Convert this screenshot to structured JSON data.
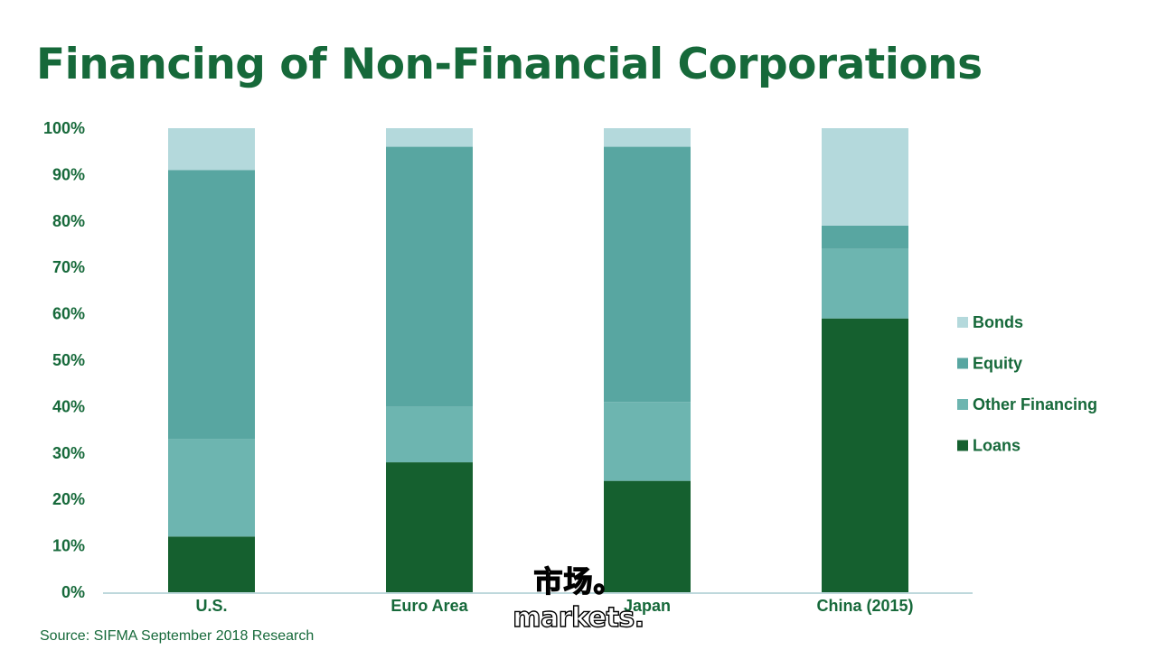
{
  "page": {
    "title": "Financing of Non-Financial Corporations",
    "source": "Source: SIFMA September 2018 Research",
    "watermark_cn": "市场。",
    "watermark_en": "markets."
  },
  "chart_data": {
    "type": "bar",
    "stacked": true,
    "title": "Financing of Non-Financial Corporations",
    "categories": [
      "U.S.",
      "Euro Area",
      "Japan",
      "China (2015)"
    ],
    "series": [
      {
        "name": "Loans",
        "color": "#15602f",
        "values": [
          12,
          28,
          24,
          59
        ]
      },
      {
        "name": "Other Financing",
        "color": "#6db5b0",
        "values": [
          21,
          12,
          17,
          15
        ]
      },
      {
        "name": "Equity",
        "color": "#58a6a1",
        "values": [
          58,
          56,
          55,
          5
        ]
      },
      {
        "name": "Bonds",
        "color": "#b4d9dc",
        "values": [
          9,
          4,
          4,
          21
        ]
      }
    ],
    "legend_order": [
      "Bonds",
      "Equity",
      "Other Financing",
      "Loans"
    ],
    "legend_position": "right",
    "ylim": [
      0,
      100
    ],
    "yticks": [
      "0%",
      "10%",
      "20%",
      "30%",
      "40%",
      "50%",
      "60%",
      "70%",
      "80%",
      "90%",
      "100%"
    ],
    "grid": false,
    "xlabel": "",
    "ylabel": ""
  }
}
